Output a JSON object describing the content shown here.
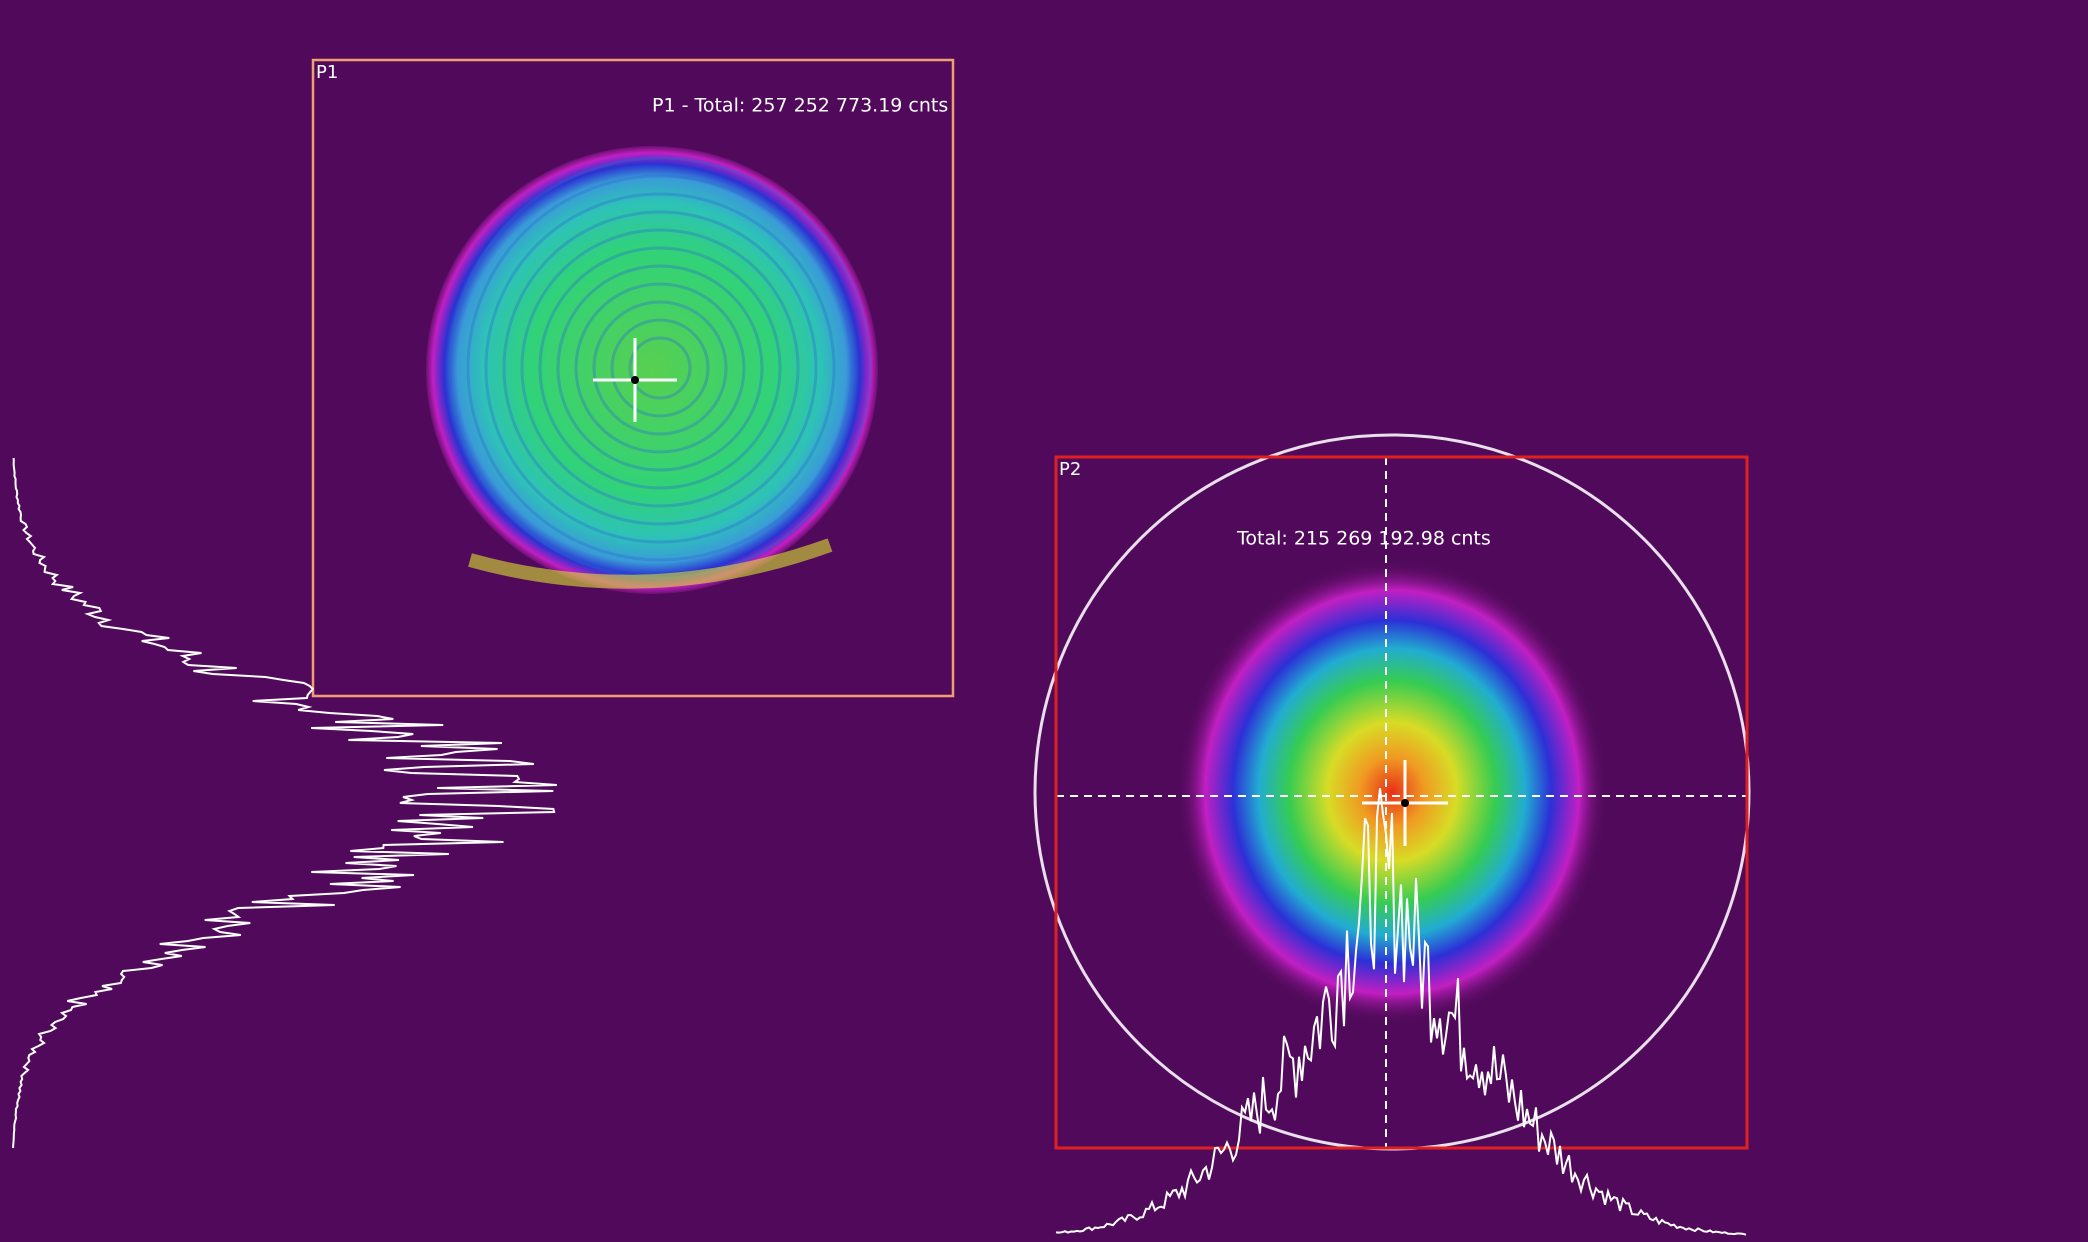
{
  "regions": [
    {
      "label": "P1",
      "total": "P1 - Total: 257 252 773.19 cnts"
    },
    {
      "label": "P2",
      "total": "Total: 215 269 192.98 cnts"
    }
  ]
}
